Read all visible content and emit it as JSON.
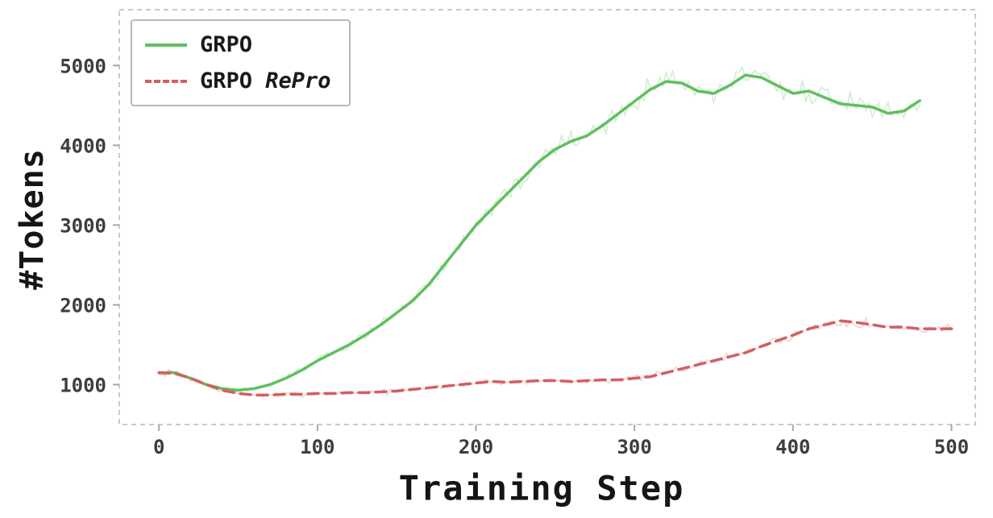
{
  "chart_data": {
    "type": "line",
    "title": "",
    "xlabel": "Training Step",
    "ylabel": "#Tokens",
    "xlim": [
      -25,
      515
    ],
    "ylim": [
      500,
      5700
    ],
    "x_ticks": [
      0,
      100,
      200,
      300,
      400,
      500
    ],
    "y_ticks": [
      1000,
      2000,
      3000,
      4000,
      5000
    ],
    "grid": false,
    "legend_position": "upper-left",
    "frame_color": "#c9c9c9",
    "tick_color": "#a8a8a8",
    "tick_label_color": "#3d3d3d",
    "series": [
      {
        "name": "GRPO",
        "name_italic": "",
        "color": "#5ec05e",
        "dash": "solid",
        "x_start": 0,
        "x_step": 10,
        "values": [
          1150,
          1150,
          1080,
          1000,
          950,
          930,
          950,
          1000,
          1080,
          1180,
          1300,
          1400,
          1500,
          1620,
          1750,
          1900,
          2050,
          2250,
          2500,
          2750,
          3000,
          3200,
          3400,
          3600,
          3800,
          3950,
          4050,
          4120,
          4250,
          4400,
          4550,
          4700,
          4800,
          4780,
          4680,
          4650,
          4750,
          4880,
          4850,
          4750,
          4650,
          4680,
          4600,
          4520,
          4500,
          4480,
          4400,
          4430,
          4560
        ],
        "raw_noise_amp": 0.05,
        "raw_opacity": 0.3,
        "raw_seed": 42
      },
      {
        "name": "GRPO ",
        "name_italic": "RePro",
        "color": "#d45f5f",
        "dash": "dashed",
        "x_start": 0,
        "x_step": 10,
        "values": [
          1150,
          1140,
          1080,
          1000,
          930,
          890,
          870,
          870,
          880,
          880,
          890,
          890,
          900,
          900,
          910,
          920,
          940,
          960,
          980,
          1000,
          1020,
          1040,
          1030,
          1040,
          1050,
          1050,
          1040,
          1050,
          1060,
          1060,
          1080,
          1100,
          1150,
          1200,
          1250,
          1300,
          1350,
          1400,
          1480,
          1550,
          1620,
          1700,
          1750,
          1800,
          1780,
          1750,
          1720,
          1720,
          1700,
          1700,
          1700
        ],
        "raw_noise_amp": 0.055,
        "raw_opacity": 0.3,
        "raw_seed": 7
      }
    ]
  }
}
